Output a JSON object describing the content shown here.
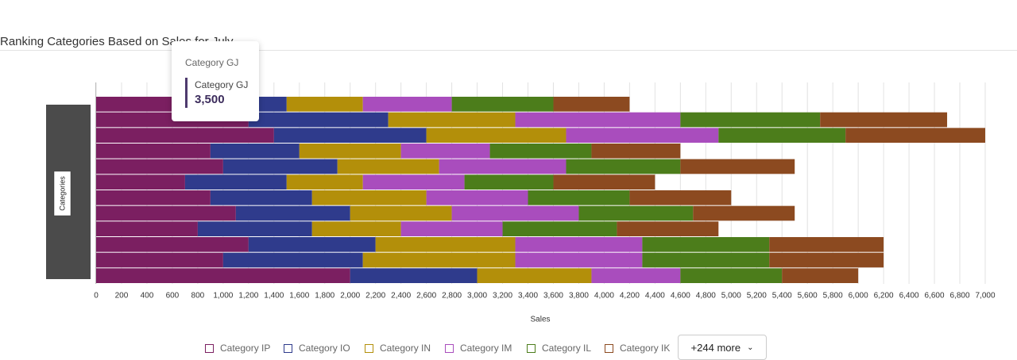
{
  "chart_data": {
    "type": "stacked-bar-horizontal",
    "title": "Ranking Categories Based on Sales for July",
    "x_label": "Sales",
    "y_label": "Categories",
    "categories": [
      null,
      null,
      null,
      null,
      null,
      null,
      null,
      null,
      null,
      null,
      null,
      null
    ],
    "series": [
      {
        "name": "Category IP",
        "color": "#7b1f61",
        "values": [
          800,
          1200,
          1400,
          900,
          1000,
          700,
          900,
          1100,
          800,
          1200,
          1000,
          2000
        ]
      },
      {
        "name": "Category IO",
        "color": "#2f3b8c",
        "values": [
          700,
          1100,
          1200,
          700,
          900,
          800,
          800,
          900,
          900,
          1000,
          1100,
          1000
        ]
      },
      {
        "name": "Category IN",
        "color": "#b38f0a",
        "values": [
          600,
          1000,
          1100,
          800,
          800,
          600,
          900,
          800,
          700,
          1100,
          1200,
          900
        ]
      },
      {
        "name": "Category IM",
        "color": "#a94dbd",
        "values": [
          700,
          1300,
          1200,
          700,
          1000,
          800,
          800,
          1000,
          800,
          1000,
          1000,
          700
        ]
      },
      {
        "name": "Category IL",
        "color": "#4c7d1b",
        "values": [
          800,
          1100,
          1000,
          800,
          900,
          700,
          800,
          900,
          900,
          1000,
          1000,
          800
        ]
      },
      {
        "name": "Category IK",
        "color": "#8c4a20",
        "values": [
          600,
          1000,
          1100,
          700,
          900,
          800,
          800,
          800,
          800,
          900,
          900,
          600
        ]
      }
    ],
    "xlim": [
      0,
      7000
    ],
    "xticks": [
      0,
      200,
      400,
      600,
      800,
      {
        "value": 1000,
        "label": "1,000"
      },
      {
        "value": 1200,
        "label": "1,200"
      },
      {
        "value": 1400,
        "label": "1,400"
      },
      {
        "value": 1600,
        "label": "1,600"
      },
      {
        "value": 1800,
        "label": "1,800"
      },
      {
        "value": 2000,
        "label": "2,000"
      },
      {
        "value": 2200,
        "label": "2,200"
      },
      {
        "value": 2400,
        "label": "2,400"
      },
      {
        "value": 2600,
        "label": "2,600"
      },
      {
        "value": 2800,
        "label": "2,800"
      },
      {
        "value": 3000,
        "label": "3,000"
      },
      {
        "value": 3200,
        "label": "3,200"
      },
      {
        "value": 3400,
        "label": "3,400"
      },
      {
        "value": 3600,
        "label": "3,600"
      },
      {
        "value": 3800,
        "label": "3,800"
      },
      {
        "value": 4000,
        "label": "4,000"
      },
      {
        "value": 4200,
        "label": "4,200"
      },
      {
        "value": 4400,
        "label": "4,400"
      },
      {
        "value": 4600,
        "label": "4,600"
      },
      {
        "value": 4800,
        "label": "4,800"
      },
      {
        "value": 5000,
        "label": "5,000"
      },
      {
        "value": 5200,
        "label": "5,200"
      },
      {
        "value": 5400,
        "label": "5,400"
      },
      {
        "value": 5600,
        "label": "5,600"
      },
      {
        "value": 5800,
        "label": "5,800"
      },
      {
        "value": 6000,
        "label": "6,000"
      },
      {
        "value": 6200,
        "label": "6,200"
      },
      {
        "value": 6400,
        "label": "6,400"
      },
      {
        "value": 6600,
        "label": "6,600"
      },
      {
        "value": 6800,
        "label": "6,800"
      },
      {
        "value": 7000,
        "label": "7,000"
      }
    ],
    "grid": true,
    "legend_more": "+244 more",
    "tooltip": {
      "title": "Category GJ",
      "name": "Category GJ",
      "value": 3500,
      "value_label": "3,500"
    }
  }
}
